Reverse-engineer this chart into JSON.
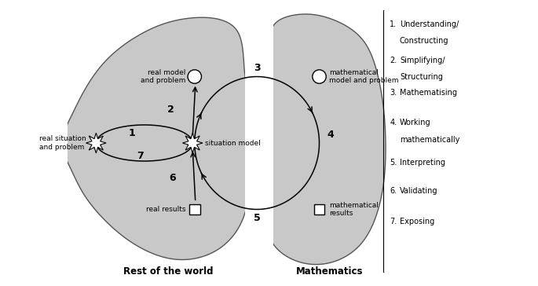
{
  "background_color": "#ffffff",
  "blob_color": "#c8c8c8",
  "edge_color": "#555555",
  "text_color": "#000000",
  "legend_items": [
    [
      "Understanding/",
      "Constructing"
    ],
    [
      "Simplifying/",
      "Structuring"
    ],
    [
      "Mathematising"
    ],
    [
      "Working",
      "mathematically"
    ],
    [
      "Interpreting"
    ],
    [
      "Validating"
    ],
    [
      "Exposing"
    ]
  ],
  "legend_nums": [
    "1.",
    "2.",
    "3.",
    "4.",
    "5.",
    "6.",
    "7."
  ],
  "labels": {
    "real_situation": "real situation\nand problem",
    "situation_model": "situation model",
    "real_model": "real model\nand problem",
    "real_results": "real results",
    "math_model": "mathematical\nmodel and problem",
    "math_results": "mathematical\nresults",
    "rest_of_world": "Rest of the world",
    "mathematics": "Mathematics"
  },
  "figsize": [
    6.85,
    3.64
  ],
  "dpi": 100
}
